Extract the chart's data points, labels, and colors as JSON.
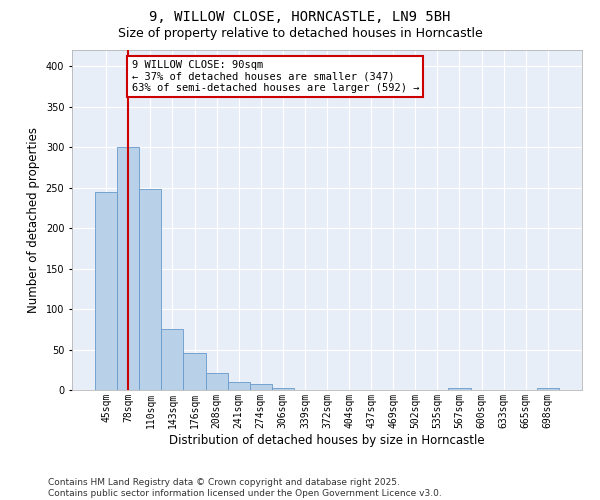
{
  "title_line1": "9, WILLOW CLOSE, HORNCASTLE, LN9 5BH",
  "title_line2": "Size of property relative to detached houses in Horncastle",
  "xlabel": "Distribution of detached houses by size in Horncastle",
  "ylabel": "Number of detached properties",
  "categories": [
    "45sqm",
    "78sqm",
    "110sqm",
    "143sqm",
    "176sqm",
    "208sqm",
    "241sqm",
    "274sqm",
    "306sqm",
    "339sqm",
    "372sqm",
    "404sqm",
    "437sqm",
    "469sqm",
    "502sqm",
    "535sqm",
    "567sqm",
    "600sqm",
    "633sqm",
    "665sqm",
    "698sqm"
  ],
  "values": [
    245,
    300,
    248,
    75,
    46,
    21,
    10,
    7,
    2,
    0,
    0,
    0,
    0,
    0,
    0,
    0,
    2,
    0,
    0,
    0,
    2
  ],
  "bar_color": "#b8d0e8",
  "bar_edge_color": "#6699cc",
  "vline_x": 1,
  "vline_color": "#cc0000",
  "annotation_text": "9 WILLOW CLOSE: 90sqm\n← 37% of detached houses are smaller (347)\n63% of semi-detached houses are larger (592) →",
  "annotation_box_facecolor": "#ffffff",
  "annotation_box_edgecolor": "#cc0000",
  "ylim": [
    0,
    420
  ],
  "yticks": [
    0,
    50,
    100,
    150,
    200,
    250,
    300,
    350,
    400
  ],
  "ax_facecolor": "#e8eef8",
  "fig_facecolor": "#ffffff",
  "grid_color": "#ffffff",
  "footer_line1": "Contains HM Land Registry data © Crown copyright and database right 2025.",
  "footer_line2": "Contains public sector information licensed under the Open Government Licence v3.0.",
  "title_fontsize": 10,
  "subtitle_fontsize": 9,
  "tick_fontsize": 7,
  "xlabel_fontsize": 8.5,
  "ylabel_fontsize": 8.5,
  "annotation_fontsize": 7.5,
  "footer_fontsize": 6.5
}
